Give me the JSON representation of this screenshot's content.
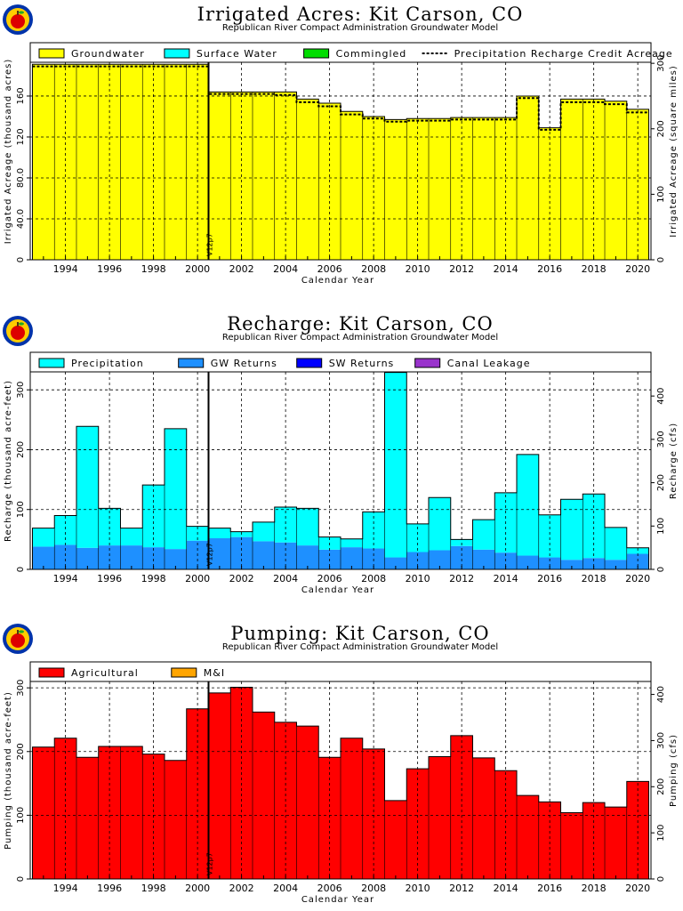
{
  "colors": {
    "groundwater": "#ffff00",
    "surface_water": "#00ffff",
    "commingled": "#00dd00",
    "precipitation": "#00ffff",
    "gw_returns": "#1e90ff",
    "sw_returns": "#0000ff",
    "canal_leakage": "#9933cc",
    "agricultural": "#ff0000",
    "mi": "#ffa500"
  },
  "chart_data": [
    {
      "type": "bar",
      "title": "Irrigated Acres: Kit Carson, CO",
      "subtitle": "Republican River Compact Administration Groundwater Model",
      "xlabel": "Calendar Year",
      "ylabel": "Irrigated Acreage (thousand acres)",
      "ylabel_right": "Irrigated Acreage (square miles)",
      "years": [
        1993,
        1994,
        1995,
        1996,
        1997,
        1998,
        1999,
        2000,
        2001,
        2002,
        2003,
        2004,
        2005,
        2006,
        2007,
        2008,
        2009,
        2010,
        2011,
        2012,
        2013,
        2014,
        2015,
        2016,
        2017,
        2018,
        2019,
        2020
      ],
      "xlim": [
        1992.4,
        2020.6
      ],
      "ylim": [
        0,
        193
      ],
      "yticks": [
        0,
        40,
        80,
        120,
        160
      ],
      "ytick_labels": [
        "0",
        "40.0",
        "80.0",
        "120",
        "160"
      ],
      "yticks_right": [
        0,
        100,
        200,
        300
      ],
      "right_scale": 1.5625,
      "xtick_labels": [
        "1994",
        "1996",
        "1998",
        "2000",
        "2002",
        "2004",
        "2006",
        "2008",
        "2010",
        "2012",
        "2014",
        "2016",
        "2018",
        "2020"
      ],
      "marker_year": 2000.5,
      "marker_label": "V12p7",
      "legend": [
        {
          "label": "Groundwater",
          "color_key": "groundwater",
          "style": "box"
        },
        {
          "label": "Surface Water",
          "color_key": "surface_water",
          "style": "box"
        },
        {
          "label": "Commingled",
          "color_key": "commingled",
          "style": "box"
        },
        {
          "label": "Precipitation Recharge Credit Acreage",
          "style": "dash"
        }
      ],
      "series": [
        {
          "name": "Groundwater",
          "color_key": "groundwater",
          "values": [
            191,
            191,
            191,
            191,
            191,
            191,
            191,
            191,
            164,
            164,
            164,
            164,
            157,
            153,
            145,
            140,
            137,
            138,
            138,
            139,
            139,
            139,
            160,
            129,
            157,
            157,
            155,
            147
          ]
        }
      ],
      "dashed_series": {
        "name": "Precipitation Recharge Credit Acreage",
        "values": [
          189,
          189,
          189,
          189,
          189,
          189,
          189,
          189,
          162,
          162,
          162,
          161,
          154,
          150,
          142,
          138,
          135,
          136,
          136,
          137,
          137,
          137,
          158,
          127,
          154,
          154,
          152,
          144
        ]
      }
    },
    {
      "type": "bar",
      "title": "Recharge: Kit Carson, CO",
      "subtitle": "Republican River Compact Administration Groundwater Model",
      "xlabel": "Calendar Year",
      "ylabel": "Recharge (thousand acre-feet)",
      "ylabel_right": "Recharge (cfs)",
      "years": [
        1993,
        1994,
        1995,
        1996,
        1997,
        1998,
        1999,
        2000,
        2001,
        2002,
        2003,
        2004,
        2005,
        2006,
        2007,
        2008,
        2009,
        2010,
        2011,
        2012,
        2013,
        2014,
        2015,
        2016,
        2017,
        2018,
        2019,
        2020
      ],
      "xlim": [
        1992.4,
        2020.6
      ],
      "ylim": [
        0,
        330
      ],
      "yticks": [
        0,
        100,
        200,
        300
      ],
      "ytick_labels": [
        "0",
        "100",
        "200",
        "300"
      ],
      "yticks_right": [
        0,
        100,
        200,
        300,
        400
      ],
      "right_scale": 1.381,
      "xtick_labels": [
        "1994",
        "1996",
        "1998",
        "2000",
        "2002",
        "2004",
        "2006",
        "2008",
        "2010",
        "2012",
        "2014",
        "2016",
        "2018",
        "2020"
      ],
      "marker_year": 2000.5,
      "marker_label": "V12p7",
      "legend": [
        {
          "label": "Precipitation",
          "color_key": "precipitation",
          "style": "box"
        },
        {
          "label": "GW Returns",
          "color_key": "gw_returns",
          "style": "box"
        },
        {
          "label": "SW Returns",
          "color_key": "sw_returns",
          "style": "box"
        },
        {
          "label": "Canal Leakage",
          "color_key": "canal_leakage",
          "style": "box"
        }
      ],
      "series": [
        {
          "name": "GW Returns",
          "color_key": "gw_returns",
          "values": [
            38,
            41,
            36,
            40,
            40,
            37,
            34,
            48,
            52,
            54,
            47,
            45,
            40,
            33,
            37,
            35,
            20,
            29,
            32,
            39,
            33,
            28,
            23,
            20,
            16,
            19,
            16,
            26
          ]
        },
        {
          "name": "Precipitation",
          "color_key": "precipitation",
          "values": [
            31,
            49,
            203,
            62,
            29,
            104,
            201,
            24,
            17,
            9,
            32,
            59,
            62,
            21,
            14,
            61,
            309,
            47,
            88,
            11,
            50,
            100,
            169,
            71,
            101,
            107,
            54,
            10
          ]
        }
      ]
    },
    {
      "type": "bar",
      "title": "Pumping: Kit Carson, CO",
      "subtitle": "Republican River Compact Administration Groundwater Model",
      "xlabel": "Calendar Year",
      "ylabel": "Pumping (thousand acre-feet)",
      "ylabel_right": "Pumping (cfs)",
      "years": [
        1993,
        1994,
        1995,
        1996,
        1997,
        1998,
        1999,
        2000,
        2001,
        2002,
        2003,
        2004,
        2005,
        2006,
        2007,
        2008,
        2009,
        2010,
        2011,
        2012,
        2013,
        2014,
        2015,
        2016,
        2017,
        2018,
        2019,
        2020
      ],
      "xlim": [
        1992.4,
        2020.6
      ],
      "ylim": [
        0,
        310
      ],
      "yticks": [
        0,
        100,
        200,
        300
      ],
      "ytick_labels": [
        "0",
        "100",
        "200",
        "300"
      ],
      "yticks_right": [
        0,
        100,
        200,
        300,
        400
      ],
      "right_scale": 1.381,
      "xtick_labels": [
        "1994",
        "1996",
        "1998",
        "2000",
        "2002",
        "2004",
        "2006",
        "2008",
        "2010",
        "2012",
        "2014",
        "2016",
        "2018",
        "2020"
      ],
      "marker_year": 2000.5,
      "marker_label": "V12p7",
      "legend": [
        {
          "label": "Agricultural",
          "color_key": "agricultural",
          "style": "box"
        },
        {
          "label": "M&I",
          "color_key": "mi",
          "style": "box"
        }
      ],
      "series": [
        {
          "name": "Agricultural",
          "color_key": "agricultural",
          "values": [
            207,
            221,
            191,
            208,
            208,
            196,
            186,
            267,
            292,
            301,
            262,
            246,
            240,
            191,
            221,
            204,
            123,
            173,
            192,
            225,
            190,
            170,
            131,
            121,
            104,
            120,
            113,
            153
          ]
        }
      ]
    }
  ]
}
